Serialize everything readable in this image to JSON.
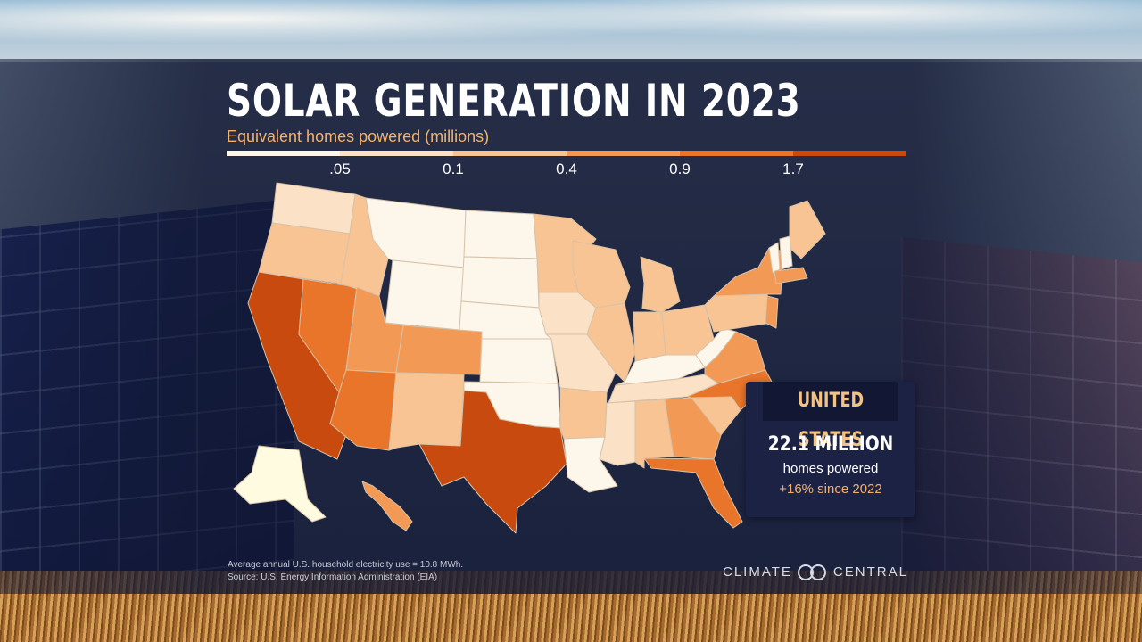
{
  "title": "SOLAR GENERATION IN 2023",
  "subtitle": "Equivalent homes powered (millions)",
  "legend": {
    "ticks": [
      ".05",
      "0.1",
      "0.4",
      "0.9",
      "1.7"
    ],
    "colors": [
      "#fdf6ea",
      "#fbe1c6",
      "#f8c494",
      "#f29a55",
      "#e8752a",
      "#c84a0e"
    ]
  },
  "callout": {
    "heading": "UNITED STATES",
    "value": "22.1 MILLION",
    "unit": "homes powered",
    "change": "+16% since 2022"
  },
  "footnotes": {
    "note": "Average annual U.S. household electricity use = 10.8 MWh.",
    "source": "Source: U.S. Energy Information Administration (EIA)"
  },
  "brand": {
    "name_left": "CLIMATE",
    "name_right": "CENTRAL",
    "icon": "climate-central-logo-icon"
  },
  "map_data": {
    "states": [
      {
        "id": "WA",
        "class": 2
      },
      {
        "id": "OR",
        "class": 3
      },
      {
        "id": "CA",
        "class": 6
      },
      {
        "id": "NV",
        "class": 5
      },
      {
        "id": "ID",
        "class": 3
      },
      {
        "id": "MT",
        "class": 1
      },
      {
        "id": "WY",
        "class": 1
      },
      {
        "id": "UT",
        "class": 4
      },
      {
        "id": "AZ",
        "class": 5
      },
      {
        "id": "CO",
        "class": 4
      },
      {
        "id": "NM",
        "class": 3
      },
      {
        "id": "ND",
        "class": 1
      },
      {
        "id": "SD",
        "class": 1
      },
      {
        "id": "NE",
        "class": 1
      },
      {
        "id": "KS",
        "class": 1
      },
      {
        "id": "OK",
        "class": 1
      },
      {
        "id": "TX",
        "class": 6
      },
      {
        "id": "MN",
        "class": 3
      },
      {
        "id": "IA",
        "class": 2
      },
      {
        "id": "MO",
        "class": 2
      },
      {
        "id": "AR",
        "class": 3
      },
      {
        "id": "LA",
        "class": 1
      },
      {
        "id": "WI",
        "class": 3
      },
      {
        "id": "IL",
        "class": 3
      },
      {
        "id": "MI",
        "class": 3
      },
      {
        "id": "IN",
        "class": 3
      },
      {
        "id": "OH",
        "class": 3
      },
      {
        "id": "KY",
        "class": 1
      },
      {
        "id": "TN",
        "class": 2
      },
      {
        "id": "MS",
        "class": 2
      },
      {
        "id": "AL",
        "class": 3
      },
      {
        "id": "GA",
        "class": 4
      },
      {
        "id": "FL",
        "class": 5
      },
      {
        "id": "SC",
        "class": 3
      },
      {
        "id": "NC",
        "class": 5
      },
      {
        "id": "VA",
        "class": 4
      },
      {
        "id": "WV",
        "class": 1
      },
      {
        "id": "PA",
        "class": 3
      },
      {
        "id": "NY",
        "class": 4
      },
      {
        "id": "ME",
        "class": 3
      },
      {
        "id": "VT",
        "class": 1
      },
      {
        "id": "NH",
        "class": 1
      },
      {
        "id": "MA",
        "class": 4
      },
      {
        "id": "NJ",
        "class": 4
      },
      {
        "id": "AK",
        "class": 0
      },
      {
        "id": "HI",
        "class": 4
      }
    ]
  }
}
